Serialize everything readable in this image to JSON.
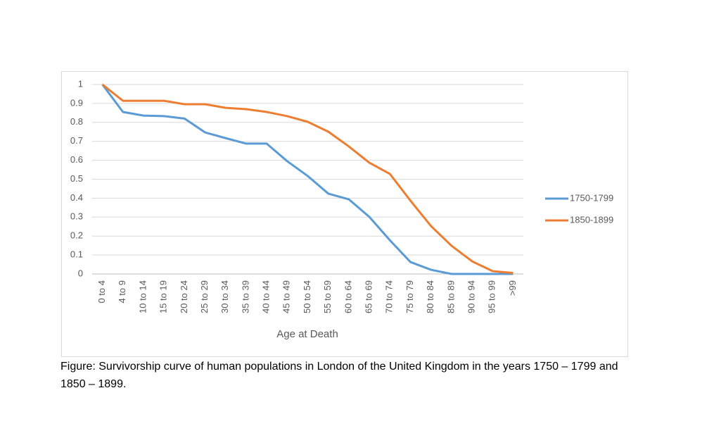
{
  "chart_data": {
    "type": "line",
    "categories": [
      "0 to 4",
      "4 to 9",
      "10 to 14",
      "15 to 19",
      "20 to 24",
      "25 to 29",
      "30 to 34",
      "35 to 39",
      "40 to 44",
      "45 to 49",
      "50 to 54",
      "55 to 59",
      "60 to 64",
      "65 to 69",
      "70 to 74",
      "75 to 79",
      "80 to 84",
      "85 to 89",
      "90 to 94",
      "95 to 99",
      ">99"
    ],
    "series": [
      {
        "name": "1750-1799",
        "color": "#5b9bd5",
        "values": [
          1,
          0.855,
          0.836,
          0.833,
          0.82,
          0.747,
          0.717,
          0.688,
          0.688,
          0.595,
          0.517,
          0.424,
          0.394,
          0.301,
          0.178,
          0.063,
          0.022,
          0,
          0,
          0,
          0
        ]
      },
      {
        "name": "1850-1899",
        "color": "#ed7d31",
        "values": [
          1,
          0.914,
          0.914,
          0.914,
          0.896,
          0.896,
          0.877,
          0.87,
          0.855,
          0.833,
          0.803,
          0.751,
          0.673,
          0.587,
          0.528,
          0.387,
          0.253,
          0.149,
          0.067,
          0.015,
          0.005
        ]
      }
    ],
    "x_label": "Age at Death",
    "ylim": [
      0,
      1
    ],
    "yticks": [
      0,
      0.1,
      0.2,
      0.3,
      0.4,
      0.5,
      0.6,
      0.7,
      0.8,
      0.9,
      1
    ],
    "grid": true,
    "legend": "right",
    "caption": "Figure: Survivorship curve of human populations in London of the United Kingdom in the years 1750 – 1799 and 1850 – 1899."
  }
}
